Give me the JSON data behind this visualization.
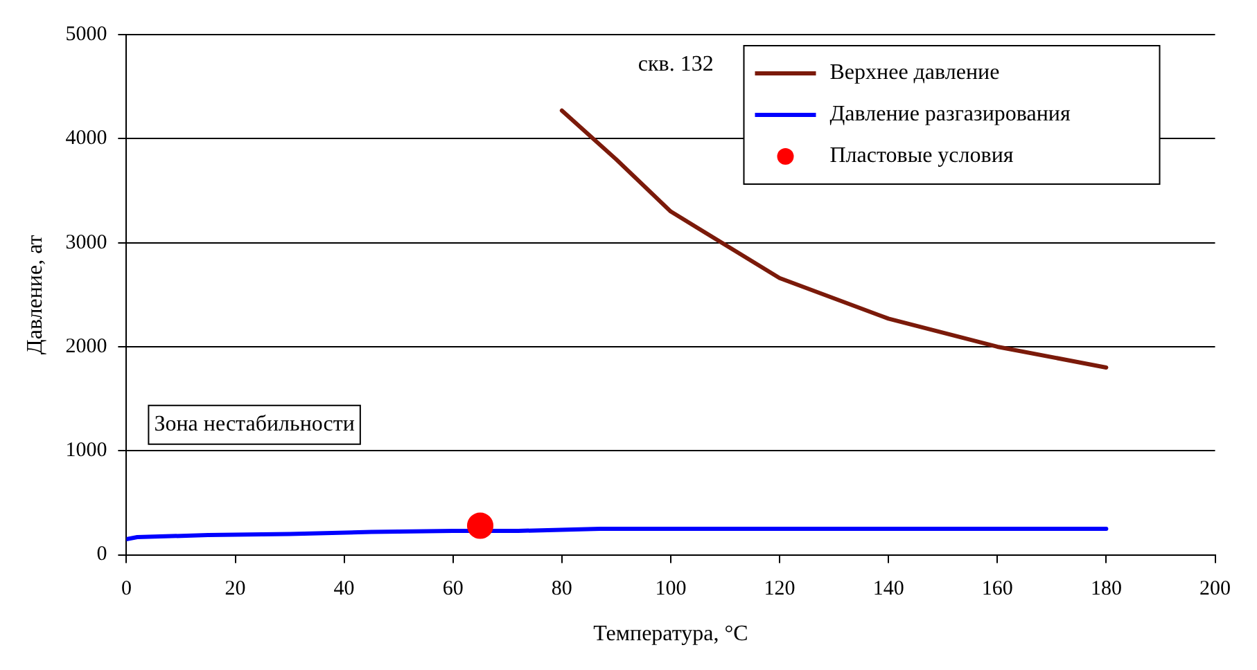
{
  "chart_data": {
    "type": "line",
    "xlabel": "Температура, °C",
    "ylabel": "Давление, ат",
    "xlim": [
      0,
      200
    ],
    "xticks": [
      0,
      20,
      40,
      60,
      80,
      100,
      120,
      140,
      160,
      180,
      200
    ],
    "ylim": [
      0,
      5000
    ],
    "yticks": [
      0,
      1000,
      2000,
      3000,
      4000,
      5000
    ],
    "grid": "y",
    "legend": "top right",
    "line_style": "solid",
    "annotations": [
      "скв. 132",
      "Зона нестабильности"
    ],
    "series": [
      {
        "name": "Верхнее давление",
        "marker": "none",
        "color": "#7b1a0a",
        "x": [
          80,
          90,
          100,
          120,
          140,
          160,
          180
        ],
        "values": [
          4270,
          3800,
          3300,
          2660,
          2270,
          2000,
          1800
        ]
      },
      {
        "name": "Давление разгазирования",
        "marker": "none",
        "color": "#0000ff",
        "x": [
          0,
          2,
          15,
          30,
          45,
          60,
          72,
          87,
          180
        ],
        "values": [
          150,
          170,
          190,
          200,
          220,
          230,
          230,
          250,
          250
        ]
      },
      {
        "name": "Пластовые условия",
        "type": "scatter",
        "marker": "circle",
        "color": "#ff0000",
        "x": [
          65
        ],
        "values": [
          280
        ]
      }
    ]
  }
}
